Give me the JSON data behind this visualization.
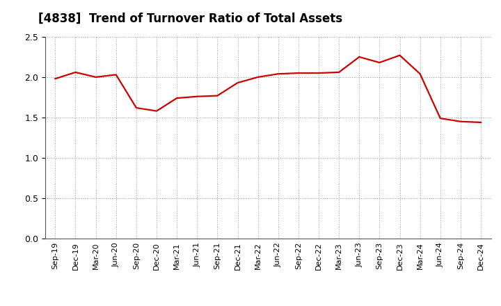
{
  "title": "[4838]  Trend of Turnover Ratio of Total Assets",
  "title_fontsize": 12,
  "line_color": "#cc0000",
  "line_width": 1.6,
  "background_color": "#ffffff",
  "plot_background_color": "#ffffff",
  "grid_color": "#999999",
  "ylim": [
    0.0,
    2.5
  ],
  "yticks": [
    0.0,
    0.5,
    1.0,
    1.5,
    2.0,
    2.5
  ],
  "x_labels": [
    "Sep-19",
    "Dec-19",
    "Mar-20",
    "Jun-20",
    "Sep-20",
    "Dec-20",
    "Mar-21",
    "Jun-21",
    "Sep-21",
    "Dec-21",
    "Mar-22",
    "Jun-22",
    "Sep-22",
    "Dec-22",
    "Mar-23",
    "Jun-23",
    "Sep-23",
    "Dec-23",
    "Mar-24",
    "Jun-24",
    "Sep-24",
    "Dec-24"
  ],
  "values": [
    1.98,
    2.06,
    2.0,
    2.03,
    1.62,
    1.58,
    1.74,
    1.76,
    1.77,
    1.93,
    2.0,
    2.04,
    2.05,
    2.05,
    2.06,
    2.25,
    2.18,
    2.27,
    2.04,
    1.49,
    1.45,
    1.44
  ]
}
